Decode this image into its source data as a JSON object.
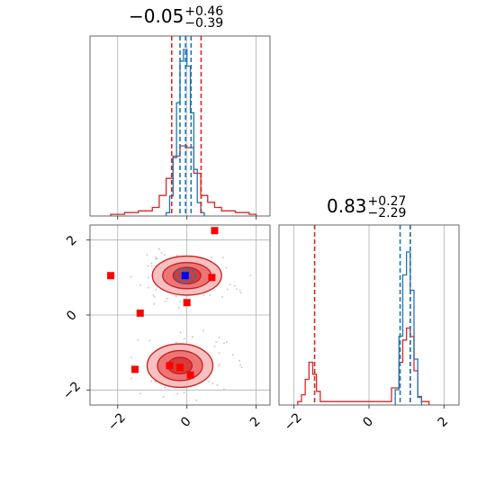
{
  "chart_data": [
    {
      "panel": "x-marginal",
      "type": "histogram",
      "title_value": "−0.05",
      "title_plus": "+0.46",
      "title_minus": "−0.39",
      "xlim": [
        -2.8,
        2.4
      ],
      "ticks": [
        -2,
        0,
        2
      ],
      "grid": true,
      "series": [
        {
          "color": "#1f77b4",
          "bins": [
            -0.6,
            -0.5,
            -0.4,
            -0.3,
            -0.2,
            -0.1,
            0.0,
            0.1,
            0.2,
            0.3,
            0.4,
            0.5
          ],
          "heights": [
            0.02,
            0.12,
            0.35,
            0.68,
            0.93,
            1.0,
            0.9,
            0.62,
            0.28,
            0.08,
            0.02
          ]
        },
        {
          "color": "#d62728",
          "bins": [
            -2.2,
            -1.8,
            -1.4,
            -1.0,
            -0.8,
            -0.6,
            -0.4,
            -0.2,
            0.0,
            0.2,
            0.4,
            0.6,
            0.8,
            1.0,
            1.4,
            1.8,
            2.0
          ],
          "heights": [
            0.01,
            0.02,
            0.03,
            0.05,
            0.12,
            0.22,
            0.35,
            0.41,
            0.4,
            0.25,
            0.12,
            0.08,
            0.05,
            0.03,
            0.02,
            0.01
          ]
        }
      ],
      "lines": {
        "red": [
          -0.44,
          0.41
        ],
        "blue": [
          -0.2,
          -0.04,
          0.12
        ]
      }
    },
    {
      "panel": "y-marginal",
      "type": "histogram",
      "title_value": "0.83",
      "title_plus": "+0.27",
      "title_minus": "−2.29",
      "xlim": [
        -2.4,
        2.4
      ],
      "ticks": [
        -2,
        0,
        2
      ],
      "grid": true,
      "series": [
        {
          "color": "#1f77b4",
          "bins": [
            0.7,
            0.8,
            0.9,
            1.0,
            1.1,
            1.2,
            1.3,
            1.4
          ],
          "heights": [
            0.1,
            0.45,
            0.85,
            1.0,
            0.75,
            0.3,
            0.05
          ]
        },
        {
          "color": "#d62728",
          "bins": [
            -1.9,
            -1.8,
            -1.7,
            -1.6,
            -1.5,
            -1.4,
            -1.3,
            -1.2,
            0.6,
            0.8,
            0.9,
            1.0,
            1.1,
            1.2,
            1.3,
            1.4,
            1.6
          ],
          "heights": [
            0.02,
            0.06,
            0.15,
            0.25,
            0.18,
            0.08,
            0.02,
            0.02,
            0.1,
            0.25,
            0.38,
            0.45,
            0.4,
            0.2,
            0.05,
            0.02
          ]
        }
      ],
      "lines": {
        "red": [
          -1.45,
          1.1
        ],
        "blue": [
          0.83,
          1.1
        ]
      }
    },
    {
      "panel": "joint",
      "type": "contour",
      "xlim": [
        -2.8,
        2.4
      ],
      "ylim": [
        -2.4,
        2.4
      ],
      "xticks": [
        -2,
        0,
        2
      ],
      "yticks": [
        -2,
        0,
        2
      ],
      "grid": true,
      "red_clusters": [
        {
          "x": 0.0,
          "y": 1.05,
          "rx": [
            1.0,
            0.7,
            0.4
          ],
          "ry": [
            0.52,
            0.35,
            0.22
          ]
        },
        {
          "x": -0.2,
          "y": -1.35,
          "rx": [
            0.95,
            0.65,
            0.35
          ],
          "ry": [
            0.58,
            0.4,
            0.22
          ]
        }
      ],
      "blue_cluster": {
        "x": -0.05,
        "y": 1.05,
        "rx": [
          0.3,
          0.18
        ],
        "ry": [
          0.2,
          0.12
        ]
      },
      "blue_marker": {
        "x": -0.05,
        "y": 1.05
      },
      "red_markers": [
        {
          "x": 0.8,
          "y": 2.25
        },
        {
          "x": -2.2,
          "y": 1.05
        },
        {
          "x": 0.72,
          "y": 1.0
        },
        {
          "x": 0.0,
          "y": 0.33
        },
        {
          "x": -1.35,
          "y": 0.05
        },
        {
          "x": -1.5,
          "y": -1.45
        },
        {
          "x": -0.5,
          "y": -1.35
        },
        {
          "x": -0.2,
          "y": -1.4
        },
        {
          "x": 0.1,
          "y": -1.6
        }
      ]
    }
  ]
}
